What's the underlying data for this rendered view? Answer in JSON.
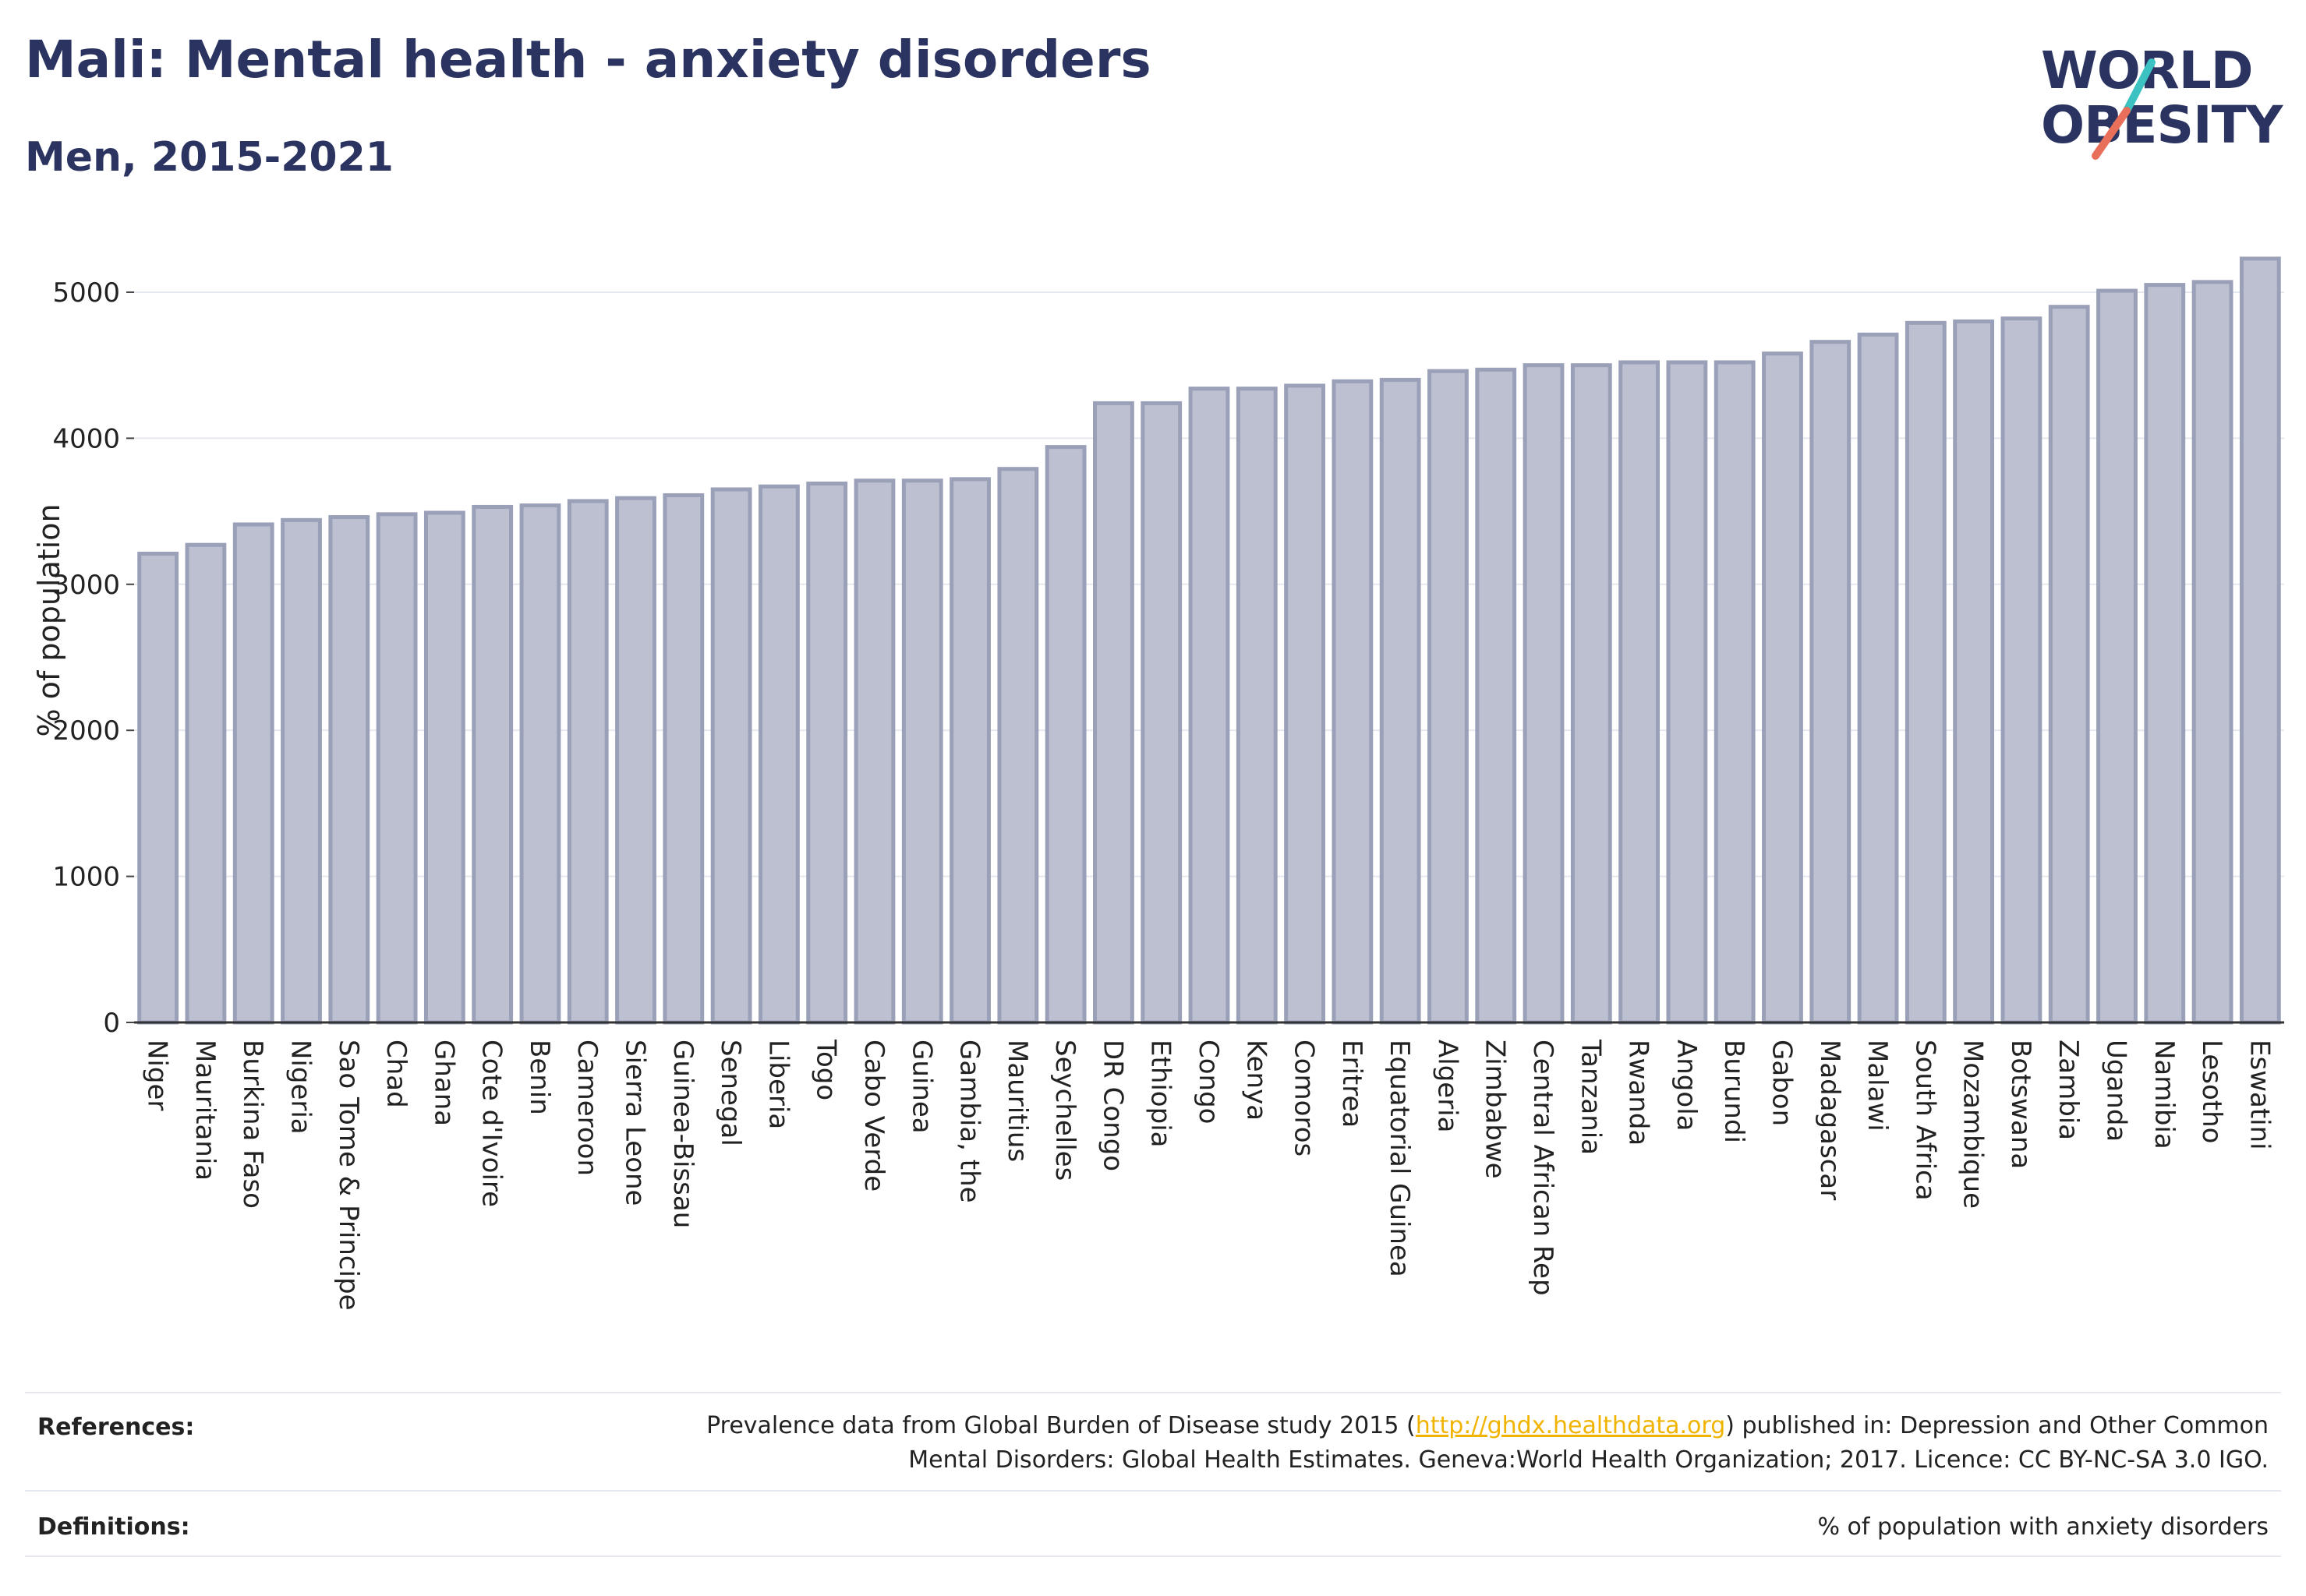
{
  "title": "Mali: Mental health - anxiety disorders",
  "subtitle": "Men, 2015-2021",
  "logo": {
    "line1": "WORLD",
    "line2": "OBESITY",
    "slash_colors": [
      "#3cc2c0",
      "#e8705a"
    ]
  },
  "colors": {
    "title": "#2b3461",
    "bar_fill": "#bcc0d0",
    "bar_stroke": "#9aa0b8",
    "grid": "#e6e8ef",
    "link": "#f0b400"
  },
  "chart_data": {
    "type": "bar",
    "ylabel": "% of population",
    "ylim": [
      0,
      5400
    ],
    "yticks": [
      0,
      1000,
      2000,
      3000,
      4000,
      5000
    ],
    "grid": true,
    "categories": [
      "Niger",
      "Mauritania",
      "Burkina Faso",
      "Nigeria",
      "Sao Tome & Principe",
      "Chad",
      "Ghana",
      "Cote d'Ivoire",
      "Benin",
      "Cameroon",
      "Sierra Leone",
      "Guinea-Bissau",
      "Senegal",
      "Liberia",
      "Togo",
      "Cabo Verde",
      "Guinea",
      "Gambia, the",
      "Mauritius",
      "Seychelles",
      "DR Congo",
      "Ethiopia",
      "Congo",
      "Kenya",
      "Comoros",
      "Eritrea",
      "Equatorial Guinea",
      "Algeria",
      "Zimbabwe",
      "Central African Rep",
      "Tanzania",
      "Rwanda",
      "Angola",
      "Burundi",
      "Gabon",
      "Madagascar",
      "Malawi",
      "South Africa",
      "Mozambique",
      "Botswana",
      "Zambia",
      "Uganda",
      "Namibia",
      "Lesotho",
      "Eswatini"
    ],
    "values": [
      3210,
      3270,
      3410,
      3440,
      3460,
      3480,
      3490,
      3530,
      3540,
      3570,
      3590,
      3610,
      3650,
      3670,
      3690,
      3710,
      3710,
      3720,
      3790,
      3940,
      4240,
      4240,
      4340,
      4340,
      4360,
      4390,
      4400,
      4460,
      4470,
      4500,
      4500,
      4520,
      4520,
      4520,
      4580,
      4660,
      4710,
      4790,
      4800,
      4820,
      4900,
      5010,
      5050,
      5070,
      5230
    ]
  },
  "references": {
    "label": "References:",
    "text_before": "Prevalence data from Global Burden of Disease study 2015 (",
    "link": "http://ghdx.healthdata.org",
    "text_after": ") published in: Depression and Other Common",
    "line2": "Mental Disorders: Global Health Estimates. Geneva:World Health Organization; 2017. Licence: CC BY-NC-SA 3.0 IGO."
  },
  "definitions": {
    "label": "Definitions:",
    "text": "% of population with anxiety disorders"
  }
}
